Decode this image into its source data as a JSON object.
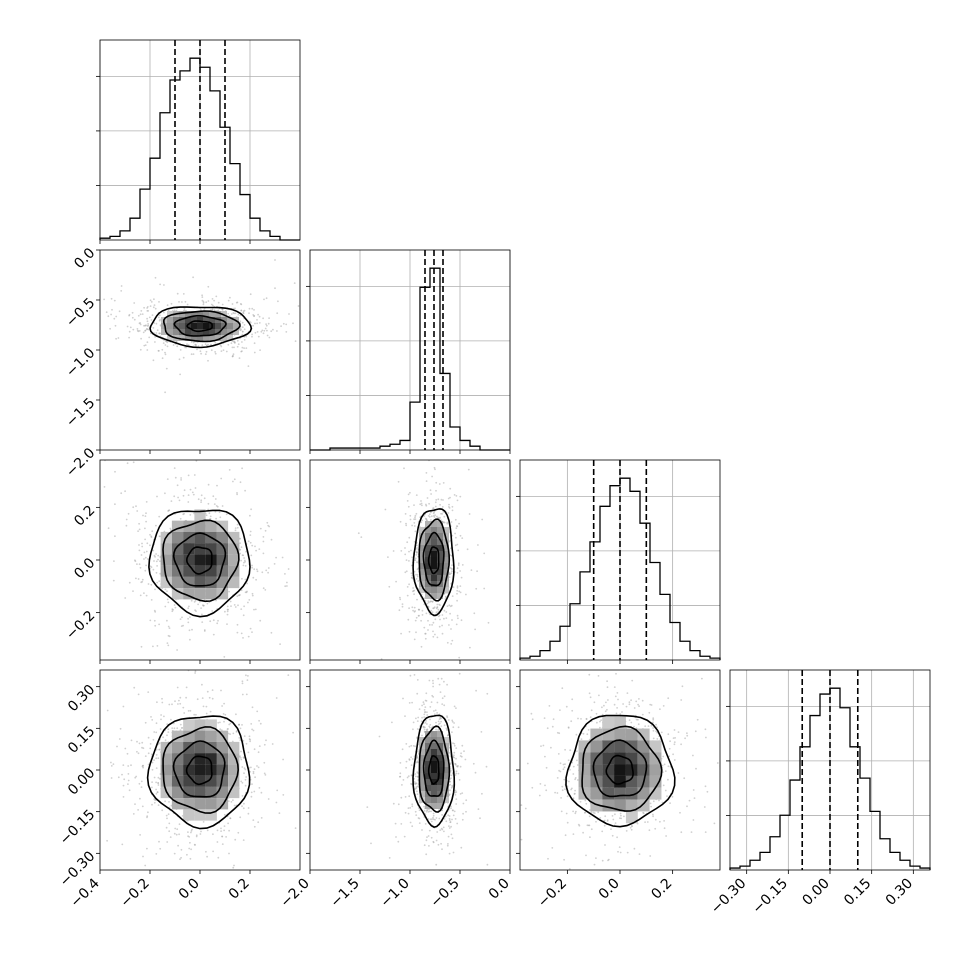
{
  "chart_data": {
    "type": "corner",
    "title": "",
    "parameters": [
      {
        "index": 0,
        "xticks": [
          "−0.4",
          "−0.2",
          "0.0",
          "0.2"
        ],
        "xtick_values": [
          -0.4,
          -0.2,
          0.0,
          0.2
        ],
        "range": [
          -0.4,
          0.4
        ],
        "quantiles": [
          -0.1,
          0.0,
          0.1
        ],
        "histogram": {
          "bin_edges": [
            -0.4,
            -0.36,
            -0.32,
            -0.28,
            -0.24,
            -0.2,
            -0.16,
            -0.12,
            -0.08,
            -0.04,
            0.0,
            0.04,
            0.08,
            0.12,
            0.16,
            0.2,
            0.24,
            0.28,
            0.32,
            0.36,
            0.4
          ],
          "counts": [
            1,
            2,
            5,
            12,
            28,
            45,
            70,
            88,
            93,
            100,
            95,
            82,
            62,
            42,
            25,
            12,
            5,
            2,
            0,
            0
          ]
        }
      },
      {
        "index": 1,
        "xticks": [
          "−2.0",
          "−1.5",
          "−1.0",
          "−0.5",
          "0.0"
        ],
        "xtick_values": [
          -2.0,
          -1.5,
          -1.0,
          -0.5,
          0.0
        ],
        "yticks": [
          "0.0",
          "−0.5",
          "−1.0",
          "−1.5",
          "−2.0"
        ],
        "ytick_values": [
          0.0,
          -0.5,
          -1.0,
          -1.5,
          -2.0
        ],
        "range": [
          -2.0,
          0.0
        ],
        "quantiles": [
          -0.85,
          -0.76,
          -0.67
        ],
        "histogram": {
          "bin_edges": [
            -2.0,
            -1.9,
            -1.8,
            -1.7,
            -1.6,
            -1.5,
            -1.4,
            -1.3,
            -1.2,
            -1.1,
            -1.0,
            -0.9,
            -0.8,
            -0.7,
            -0.6,
            -0.5,
            -0.4,
            -0.3,
            -0.2,
            -0.1,
            0.0
          ],
          "counts": [
            0,
            0,
            1,
            1,
            1,
            1,
            1,
            2,
            3,
            5,
            25,
            85,
            95,
            40,
            12,
            5,
            2,
            0,
            0,
            0
          ]
        }
      },
      {
        "index": 2,
        "xticks": [
          "−0.2",
          "0.0",
          "0.2"
        ],
        "xtick_values": [
          -0.2,
          0.0,
          0.2
        ],
        "yticks": [
          "0.2",
          "0.0",
          "−0.2"
        ],
        "ytick_values": [
          0.2,
          0.0,
          -0.2
        ],
        "range": [
          -0.38,
          0.38
        ],
        "quantiles": [
          -0.1,
          0.0,
          0.1
        ],
        "histogram": {
          "bin_edges": [
            -0.38,
            -0.342,
            -0.304,
            -0.266,
            -0.228,
            -0.19,
            -0.152,
            -0.114,
            -0.076,
            -0.038,
            0.0,
            0.038,
            0.076,
            0.114,
            0.152,
            0.19,
            0.228,
            0.266,
            0.304,
            0.342,
            0.38
          ],
          "counts": [
            1,
            2,
            5,
            10,
            18,
            30,
            47,
            63,
            82,
            93,
            97,
            90,
            73,
            52,
            35,
            20,
            10,
            5,
            2,
            1
          ]
        }
      },
      {
        "index": 3,
        "xticks": [
          "−0.30",
          "−0.15",
          "0.00",
          "0.15",
          "0.30"
        ],
        "xtick_values": [
          -0.3,
          -0.15,
          0.0,
          0.15,
          0.3
        ],
        "yticks": [
          "0.30",
          "0.15",
          "0.00",
          "−0.15",
          "−0.30"
        ],
        "ytick_values": [
          0.3,
          0.15,
          0.0,
          -0.15,
          -0.3
        ],
        "range": [
          -0.36,
          0.36
        ],
        "quantiles": [
          -0.1,
          0.0,
          0.1
        ],
        "histogram": {
          "bin_edges": [
            -0.36,
            -0.324,
            -0.288,
            -0.252,
            -0.216,
            -0.18,
            -0.144,
            -0.108,
            -0.072,
            -0.036,
            0.0,
            0.036,
            0.072,
            0.108,
            0.144,
            0.18,
            0.216,
            0.252,
            0.288,
            0.324,
            0.36
          ],
          "counts": [
            1,
            2,
            5,
            9,
            17,
            28,
            46,
            63,
            79,
            90,
            93,
            83,
            63,
            47,
            30,
            16,
            9,
            5,
            2,
            1
          ]
        }
      }
    ],
    "pairs": [
      {
        "x": 0,
        "y": 1,
        "center": [
          0.0,
          -0.76
        ],
        "sigma": [
          0.1,
          0.1
        ]
      },
      {
        "x": 0,
        "y": 2,
        "center": [
          0.0,
          0.0
        ],
        "sigma": [
          0.1,
          0.1
        ]
      },
      {
        "x": 1,
        "y": 2,
        "center": [
          -0.76,
          0.0
        ],
        "sigma": [
          0.1,
          0.1
        ]
      },
      {
        "x": 0,
        "y": 3,
        "center": [
          0.0,
          0.0
        ],
        "sigma": [
          0.1,
          0.1
        ]
      },
      {
        "x": 1,
        "y": 3,
        "center": [
          -0.76,
          0.0
        ],
        "sigma": [
          0.1,
          0.1
        ]
      },
      {
        "x": 2,
        "y": 3,
        "center": [
          0.0,
          0.0
        ],
        "sigma": [
          0.1,
          0.1
        ]
      }
    ],
    "grid": true,
    "legend": "none"
  }
}
